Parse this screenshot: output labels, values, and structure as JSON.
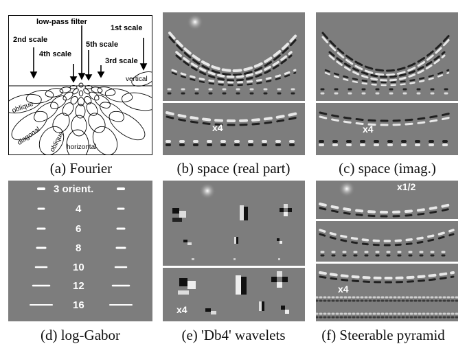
{
  "captions": {
    "a": "(a) Fourier",
    "b": "(b) space (real part)",
    "c": "(c) space (imag.)",
    "d": "(d) log-Gabor",
    "e": "(e) 'Db4' wavelets",
    "f": "(f) Steerable pyramid"
  },
  "fourier_labels": {
    "low_pass": "low-pass filter",
    "scale1": "1st scale",
    "scale2": "2nd scale",
    "scale3": "3rd scale",
    "scale4": "4th scale",
    "scale5": "5th scale",
    "vertical": "vertical",
    "oblique_left": "oblique",
    "oblique_bottom": "oblique",
    "diagonal": "diagonal",
    "horizontal": "horizontal"
  },
  "overlays": {
    "b_zoom": "x4",
    "c_zoom": "x4",
    "e_zoom": "x4",
    "f_zoom_top": "x1/2",
    "f_zoom_bottom": "x4"
  },
  "log_gabor_orientations": [
    "3 orient.",
    "4",
    "6",
    "8",
    "10",
    "12",
    "16"
  ],
  "colors": {
    "panel_gray": "#7d7d7d",
    "separator": "#ffffff",
    "overlay_text": "#ffffff"
  }
}
